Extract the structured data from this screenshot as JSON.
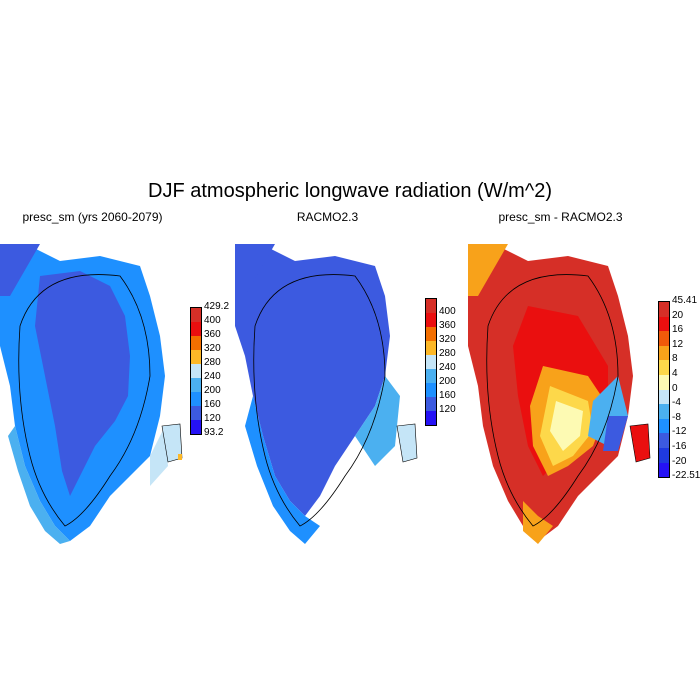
{
  "title": "DJF atmospheric longwave radiation (W/m^2)",
  "panels": [
    {
      "title": "presc_sm (yrs 2060-2079)"
    },
    {
      "title": "RACMO2.3"
    },
    {
      "title": "presc_sm - RACMO2.3"
    }
  ],
  "colorbars": [
    {
      "colors": [
        "#d62f27",
        "#ea0f0f",
        "#f36f00",
        "#fdb827",
        "#c5e5f7",
        "#4bb0f0",
        "#1e90ff",
        "#3c5ae0",
        "#2512f5"
      ],
      "labels": [
        "429.2",
        "400",
        "360",
        "320",
        "280",
        "240",
        "200",
        "160",
        "120",
        "93.2"
      ]
    },
    {
      "colors": [
        "#d62f27",
        "#ea0f0f",
        "#f36f00",
        "#fdb827",
        "#c5e5f7",
        "#4bb0f0",
        "#1e90ff",
        "#3c5ae0",
        "#2512f5"
      ],
      "labels": [
        "400",
        "360",
        "320",
        "280",
        "240",
        "200",
        "160",
        "120"
      ]
    },
    {
      "colors": [
        "#d62f27",
        "#ea0f0f",
        "#f05a0a",
        "#f8a21a",
        "#fdd84a",
        "#fdfab3",
        "#c5e5f7",
        "#4bb0f0",
        "#1e90ff",
        "#3c5ae0",
        "#1f3adf",
        "#2512f5"
      ],
      "labels": [
        "45.41",
        "20",
        "16",
        "12",
        "8",
        "4",
        "0",
        "-4",
        "-8",
        "-12",
        "-16",
        "-20",
        "-22.51"
      ]
    }
  ],
  "colors": {
    "outer_low": "#1e90ff",
    "interior": "#3c5ae0",
    "edge_light": "#c5e5f7",
    "edge_mid": "#4bb0f0",
    "diff_high": "#d62f27",
    "diff_mid": "#ea0f0f",
    "diff_orange": "#f8a21a",
    "diff_yellow": "#fdd84a",
    "diff_pale": "#fdfab3"
  }
}
